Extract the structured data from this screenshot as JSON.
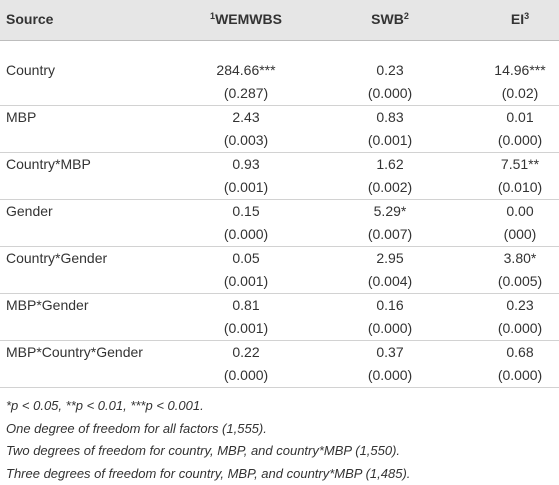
{
  "table": {
    "header": {
      "source": "Source",
      "columns": [
        {
          "sup": "1",
          "label": "WEMWBS"
        },
        {
          "label": "SWB",
          "sup": "2"
        },
        {
          "label": "EI",
          "sup": "3"
        }
      ]
    },
    "rows": [
      {
        "source": "Country",
        "cells": [
          {
            "value": "284.66***",
            "se": "(0.287)"
          },
          {
            "value": "0.23",
            "se": "(0.000)"
          },
          {
            "value": "14.96***",
            "se": "(0.02)"
          }
        ]
      },
      {
        "source": "MBP",
        "cells": [
          {
            "value": "2.43",
            "se": "(0.003)"
          },
          {
            "value": "0.83",
            "se": "(0.001)"
          },
          {
            "value": "0.01",
            "se": "(0.000)"
          }
        ]
      },
      {
        "source": "Country*MBP",
        "cells": [
          {
            "value": "0.93",
            "se": "(0.001)"
          },
          {
            "value": "1.62",
            "se": "(0.002)"
          },
          {
            "value": "7.51**",
            "se": "(0.010)"
          }
        ]
      },
      {
        "source": "Gender",
        "cells": [
          {
            "value": "0.15",
            "se": "(0.000)"
          },
          {
            "value": "5.29*",
            "se": "(0.007)"
          },
          {
            "value": "0.00",
            "se": "(000)"
          }
        ]
      },
      {
        "source": "Country*Gender",
        "cells": [
          {
            "value": "0.05",
            "se": "(0.001)"
          },
          {
            "value": "2.95",
            "se": "(0.004)"
          },
          {
            "value": "3.80*",
            "se": "(0.005)"
          }
        ]
      },
      {
        "source": "MBP*Gender",
        "cells": [
          {
            "value": "0.81",
            "se": "(0.001)"
          },
          {
            "value": "0.16",
            "se": "(0.000)"
          },
          {
            "value": "0.23",
            "se": "(0.000)"
          }
        ]
      },
      {
        "source": "MBP*Country*Gender",
        "cells": [
          {
            "value": "0.22",
            "se": "(0.000)"
          },
          {
            "value": "0.37",
            "se": "(0.000)"
          },
          {
            "value": "0.68",
            "se": "(0.000)"
          }
        ]
      }
    ],
    "footnotes": [
      "*p < 0.05, **p < 0.01, ***p < 0.001.",
      "One degree of freedom for all factors (1,555).",
      "Two degrees of freedom for country, MBP, and country*MBP (1,550).",
      "Three degrees of freedom for country, MBP, and country*MBP (1,485)."
    ]
  }
}
